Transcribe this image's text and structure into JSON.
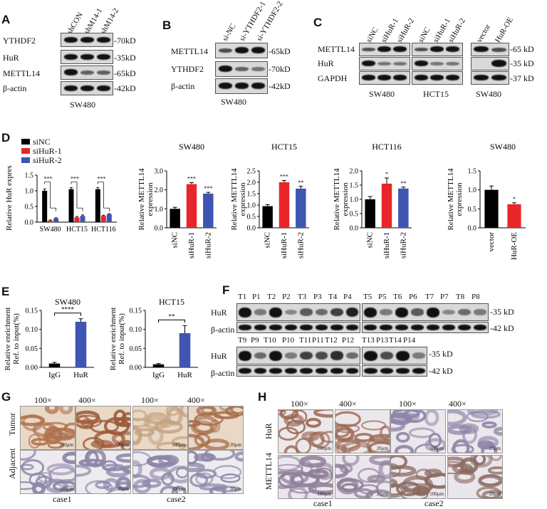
{
  "panels": {
    "A": {
      "letter": "A",
      "lanes": [
        "shCON",
        "shM14-1",
        "shM14-2"
      ],
      "rows": [
        {
          "name": "YTHDF2",
          "size": "-70kD"
        },
        {
          "name": "HuR",
          "size": "-35kD"
        },
        {
          "name": "METTL14",
          "size": "-65kD"
        },
        {
          "name": "β-actin",
          "size": "-42kD"
        }
      ],
      "cell_line": "SW480"
    },
    "B": {
      "letter": "B",
      "lanes": [
        "si-NC",
        "si-YTHDF2-1",
        "si-YTHDF2-2"
      ],
      "rows": [
        {
          "name": "METTL14",
          "size": "-65kD"
        },
        {
          "name": "YTHDF2",
          "size": "-70kD"
        },
        {
          "name": "β-actin",
          "size": "-42kD"
        }
      ],
      "cell_line": "SW480"
    },
    "C": {
      "letter": "C",
      "group1_lanes": [
        "siNC",
        "siHuR-1",
        "siHuR-2"
      ],
      "group2_lanes": [
        "siNC",
        "siHuR-1",
        "siHuR-2"
      ],
      "group3_lanes": [
        "vector",
        "HuR-OE"
      ],
      "rows": [
        "METTL14",
        "HuR",
        "GAPDH"
      ],
      "sizes": [
        "-65 kD",
        "-35 kD",
        "-37 kD"
      ],
      "cell_lines": [
        "SW480",
        "HCT15",
        "SW480"
      ]
    },
    "D": {
      "letter": "D",
      "legend": [
        "siNC",
        "siHuR-1",
        "siHuR-2"
      ]
    },
    "E": {
      "letter": "E"
    },
    "F": {
      "letter": "F",
      "row1_lanes": [
        "T1",
        "P1",
        "T2",
        "P2",
        "T3",
        "P3",
        "T4",
        "P4",
        "T5",
        "P5",
        "T6",
        "P6",
        "T7",
        "P7",
        "T8",
        "P8"
      ],
      "row2_lanes": [
        "T9",
        "P9",
        "T10",
        "P10",
        "T11",
        "P11",
        "T12",
        "P12",
        "T13",
        "P13",
        "T14",
        "P14"
      ],
      "rows": [
        "HuR",
        "β-actin"
      ],
      "sizes": [
        "-35 kD",
        "-42 kD"
      ]
    },
    "G": {
      "letter": "G",
      "mags": [
        "100×",
        "400×",
        "100×",
        "400×"
      ],
      "rows": [
        "Tumor",
        "Adjacent"
      ],
      "cases": [
        "case1",
        "case2"
      ],
      "scales": [
        "100μm",
        "20μm",
        "100μm",
        "20μm"
      ]
    },
    "H": {
      "letter": "H",
      "mags": [
        "100×",
        "400×",
        "100×",
        "400×"
      ],
      "rows": [
        "HuR",
        "METTL14"
      ],
      "cases": [
        "case1",
        "case2"
      ],
      "scales": [
        "100μm",
        "20μm",
        "100μm",
        "20μm"
      ]
    }
  },
  "chart_data": [
    {
      "type": "bar",
      "panel": "D1",
      "categories": [
        "SW480",
        "HCT15",
        "HCT116"
      ],
      "series": [
        {
          "name": "siNC",
          "values": [
            1.0,
            1.05,
            1.05
          ],
          "errors": [
            0.06,
            0.05,
            0.05
          ]
        },
        {
          "name": "siHuR-1",
          "values": [
            0.05,
            0.15,
            0.2
          ],
          "errors": [
            0.02,
            0.03,
            0.02
          ]
        },
        {
          "name": "siHuR-2",
          "values": [
            0.12,
            0.2,
            0.25
          ],
          "errors": [
            0.02,
            0.03,
            0.02
          ]
        }
      ],
      "ylabel": "Relative HuR expression",
      "ylim": [
        0,
        1.5
      ],
      "yticks": [
        "0.0",
        "0.5",
        "1.0",
        "1.5"
      ],
      "sig": [
        "***",
        "***",
        "***"
      ],
      "colors": [
        "#000000",
        "#e8262a",
        "#3f55b3"
      ]
    },
    {
      "type": "bar",
      "panel": "D2",
      "title": "SW480",
      "categories": [
        "siNC",
        "siHuR-1",
        "siHuR-2"
      ],
      "values": [
        1.0,
        2.3,
        1.8
      ],
      "errors": [
        0.08,
        0.08,
        0.07
      ],
      "sig": [
        "",
        "***",
        "***"
      ],
      "ylabel": "Relative METTL14 expression",
      "ylim": [
        0,
        3.0
      ],
      "yticks": [
        "0.0",
        "1.0",
        "2.0",
        "3.0"
      ],
      "colors": [
        "#000000",
        "#e8262a",
        "#3f55b3"
      ]
    },
    {
      "type": "bar",
      "panel": "D3",
      "title": "HCT15",
      "categories": [
        "siNC",
        "siHuR-1",
        "siHuR-2"
      ],
      "values": [
        0.95,
        2.0,
        1.72
      ],
      "errors": [
        0.07,
        0.08,
        0.1
      ],
      "sig": [
        "",
        "***",
        "**"
      ],
      "ylabel": "Relative METTL14 expression",
      "ylim": [
        0,
        2.5
      ],
      "yticks": [
        "0.0",
        "0.5",
        "1.0",
        "1.5",
        "2.0",
        "2.5"
      ],
      "colors": [
        "#000000",
        "#e8262a",
        "#3f55b3"
      ]
    },
    {
      "type": "bar",
      "panel": "D4",
      "title": "HCT116",
      "categories": [
        "siNC",
        "siHuR-1",
        "siHuR-2"
      ],
      "values": [
        1.0,
        1.55,
        1.38
      ],
      "errors": [
        0.1,
        0.2,
        0.05
      ],
      "sig": [
        "",
        "*",
        "**"
      ],
      "ylabel": "Relative METTL14 expression",
      "ylim": [
        0,
        2.0
      ],
      "yticks": [
        "0.0",
        "0.5",
        "1.0",
        "1.5",
        "2.0"
      ],
      "colors": [
        "#000000",
        "#e8262a",
        "#3f55b3"
      ]
    },
    {
      "type": "bar",
      "panel": "D5",
      "title": "SW480",
      "categories": [
        "vector",
        "HuR-OE"
      ],
      "values": [
        1.0,
        0.62
      ],
      "errors": [
        0.1,
        0.04
      ],
      "sig": [
        "",
        "*"
      ],
      "ylabel": "Relative METTL14 expression",
      "ylim": [
        0,
        1.5
      ],
      "yticks": [
        "0.0",
        "0.5",
        "1.0",
        "1.5"
      ],
      "colors": [
        "#000000",
        "#e8262a"
      ]
    },
    {
      "type": "bar",
      "panel": "E1",
      "title": "SW480",
      "categories": [
        "IgG",
        "HuR"
      ],
      "values": [
        0.01,
        0.12
      ],
      "errors": [
        0.003,
        0.008
      ],
      "sig": "****",
      "ylabel": "Relative enrichment Ref. to input(%)",
      "ylim": [
        0,
        0.15
      ],
      "yticks": [
        "0.00",
        "0.05",
        "0.10",
        "0.15"
      ],
      "colors": [
        "#000000",
        "#3f55b3"
      ]
    },
    {
      "type": "bar",
      "panel": "E2",
      "title": "HCT15",
      "categories": [
        "IgG",
        "HuR"
      ],
      "values": [
        0.008,
        0.09
      ],
      "errors": [
        0.002,
        0.02
      ],
      "sig": "**",
      "ylabel": "Relative enrichment Ref. to input(%)",
      "ylim": [
        0,
        0.15
      ],
      "yticks": [
        "0.00",
        "0.05",
        "0.10",
        "0.15"
      ],
      "colors": [
        "#000000",
        "#3f55b3"
      ]
    }
  ]
}
